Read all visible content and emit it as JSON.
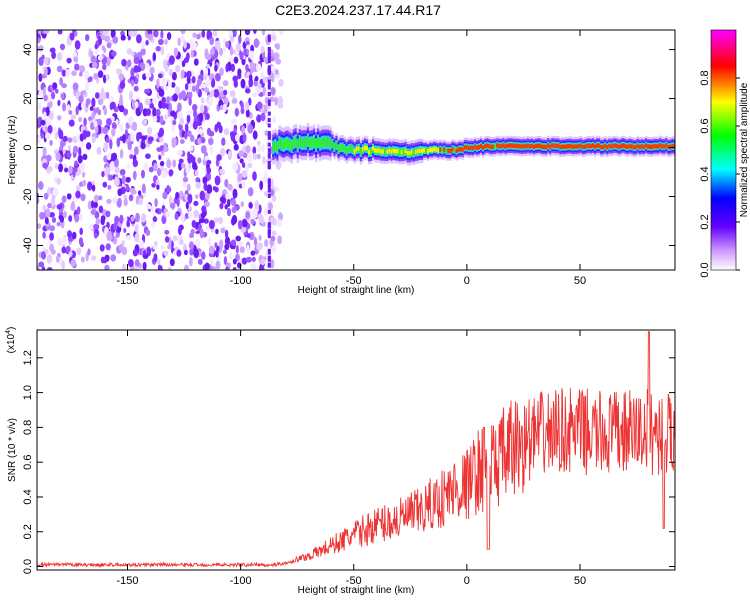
{
  "title": "C2E3.2024.237.17.44.R17",
  "chart_data": [
    {
      "type": "heatmap",
      "xlabel": "Height of straight line (km)",
      "ylabel": "Frequency (Hz)",
      "xlim": [
        -190,
        92
      ],
      "ylim": [
        -50,
        48
      ],
      "xticks": [
        -150,
        -100,
        -50,
        0,
        50
      ],
      "yticks": [
        -40,
        -20,
        0,
        20,
        40
      ],
      "noise_region_x": [
        -190,
        -82
      ],
      "signal_centerline": {
        "x": [
          -85,
          -75,
          -65,
          -55,
          -45,
          -35,
          -25,
          -15,
          -5,
          0,
          10,
          20,
          40,
          60,
          92
        ],
        "y": [
          1,
          2,
          2,
          0,
          -1,
          -1.5,
          -2,
          -1,
          -1,
          0,
          0.5,
          0.5,
          0.5,
          0.5,
          0.5
        ]
      },
      "colorbar": {
        "label": "Normalized spectral amplitude",
        "range": [
          0,
          1
        ],
        "ticks": [
          "0.0",
          "0.2",
          "0.4",
          "0.6",
          "0.8"
        ],
        "colors": [
          "#ffffff",
          "#9933ff",
          "#0000ff",
          "#00ffff",
          "#00ff00",
          "#ffff00",
          "#ff0000",
          "#ff00ff"
        ]
      }
    },
    {
      "type": "line",
      "xlabel": "Height of straight line (km)",
      "ylabel": "SNR (10 * v/v)",
      "yscale_label": "(x10",
      "yscale_exp": "4",
      "xlim": [
        -190,
        92
      ],
      "ylim": [
        -0.02,
        1.36
      ],
      "xticks": [
        -150,
        -100,
        -50,
        0,
        50
      ],
      "yticks": [
        "0.0",
        "0.2",
        "0.4",
        "0.6",
        "0.8",
        "1.0",
        "1.2"
      ],
      "color": "#ee3333",
      "x": [
        -190,
        -150,
        -100,
        -85,
        -80,
        -70,
        -60,
        -50,
        -40,
        -30,
        -20,
        -10,
        -5,
        0,
        5,
        10,
        20,
        30,
        40,
        50,
        60,
        70,
        80,
        92
      ],
      "y": [
        0.01,
        0.01,
        0.01,
        0.01,
        0.02,
        0.06,
        0.12,
        0.18,
        0.24,
        0.27,
        0.32,
        0.4,
        0.45,
        0.47,
        0.55,
        0.57,
        0.67,
        0.75,
        0.78,
        0.78,
        0.76,
        0.77,
        0.78,
        0.75
      ]
    }
  ]
}
